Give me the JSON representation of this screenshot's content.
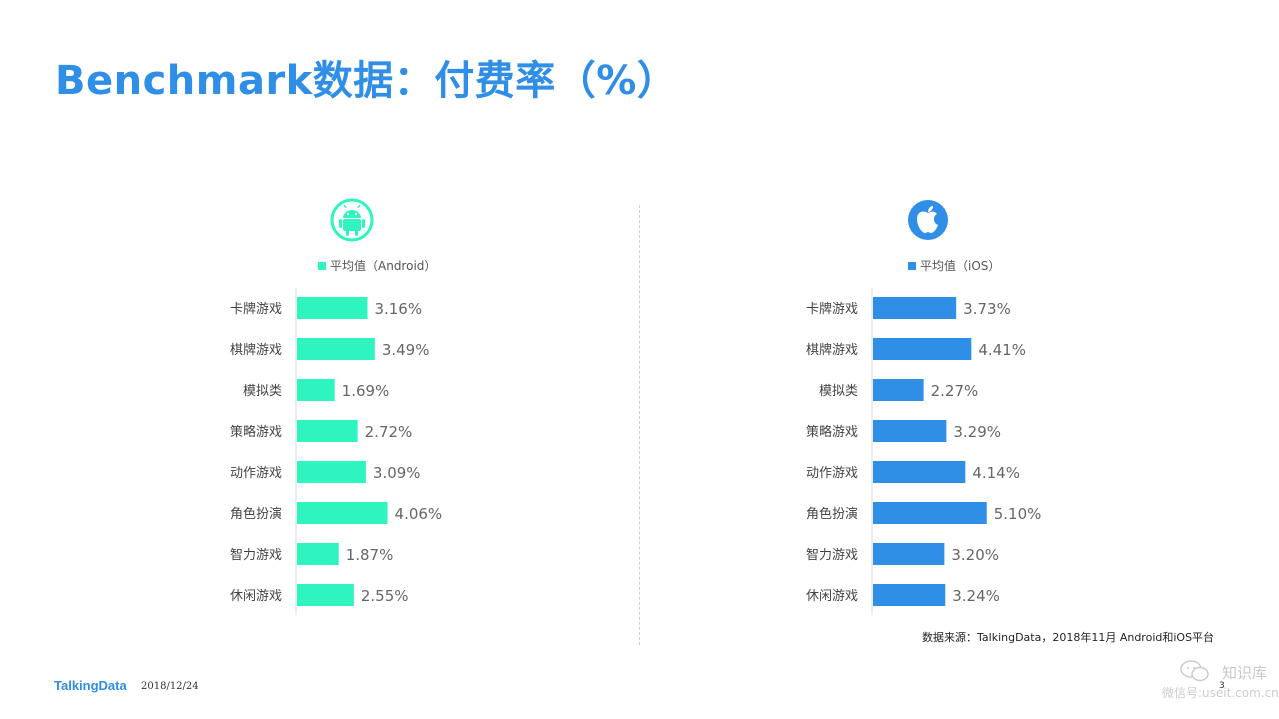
{
  "title": "Benchmark数据：付费率（%）",
  "source": "数据来源：TalkingData，2018年11月 Android和iOS平台",
  "footer": {
    "logo": "TalkingData",
    "date": "2018/12/24",
    "page": "3"
  },
  "watermark": {
    "line1": "知识库",
    "line2": "微信号:useit.com.cn"
  },
  "colors": {
    "title": "#2f8ee5",
    "android": "#2ef5c0",
    "ios": "#2f8ee5"
  },
  "chart_data": [
    {
      "type": "bar",
      "orientation": "horizontal",
      "platform_icon": "android-icon",
      "legend": "平均值（Android）",
      "categories": [
        "卡牌游戏",
        "棋牌游戏",
        "模拟类",
        "策略游戏",
        "动作游戏",
        "角色扮演",
        "智力游戏",
        "休闲游戏"
      ],
      "values": [
        3.16,
        3.49,
        1.69,
        2.72,
        3.09,
        4.06,
        1.87,
        2.55
      ],
      "labels": [
        "3.16%",
        "3.49%",
        "1.69%",
        "2.72%",
        "3.09%",
        "4.06%",
        "1.87%",
        "2.55%"
      ],
      "color": "#2ef5c0",
      "grid": false
    },
    {
      "type": "bar",
      "orientation": "horizontal",
      "platform_icon": "apple-icon",
      "legend": "平均值（iOS）",
      "categories": [
        "卡牌游戏",
        "棋牌游戏",
        "模拟类",
        "策略游戏",
        "动作游戏",
        "角色扮演",
        "智力游戏",
        "休闲游戏"
      ],
      "values": [
        3.73,
        4.41,
        2.27,
        3.29,
        4.14,
        5.1,
        3.2,
        3.24
      ],
      "labels": [
        "3.73%",
        "4.41%",
        "2.27%",
        "3.29%",
        "4.14%",
        "5.10%",
        "3.20%",
        "3.24%"
      ],
      "color": "#2f8ee5",
      "grid": false
    }
  ]
}
